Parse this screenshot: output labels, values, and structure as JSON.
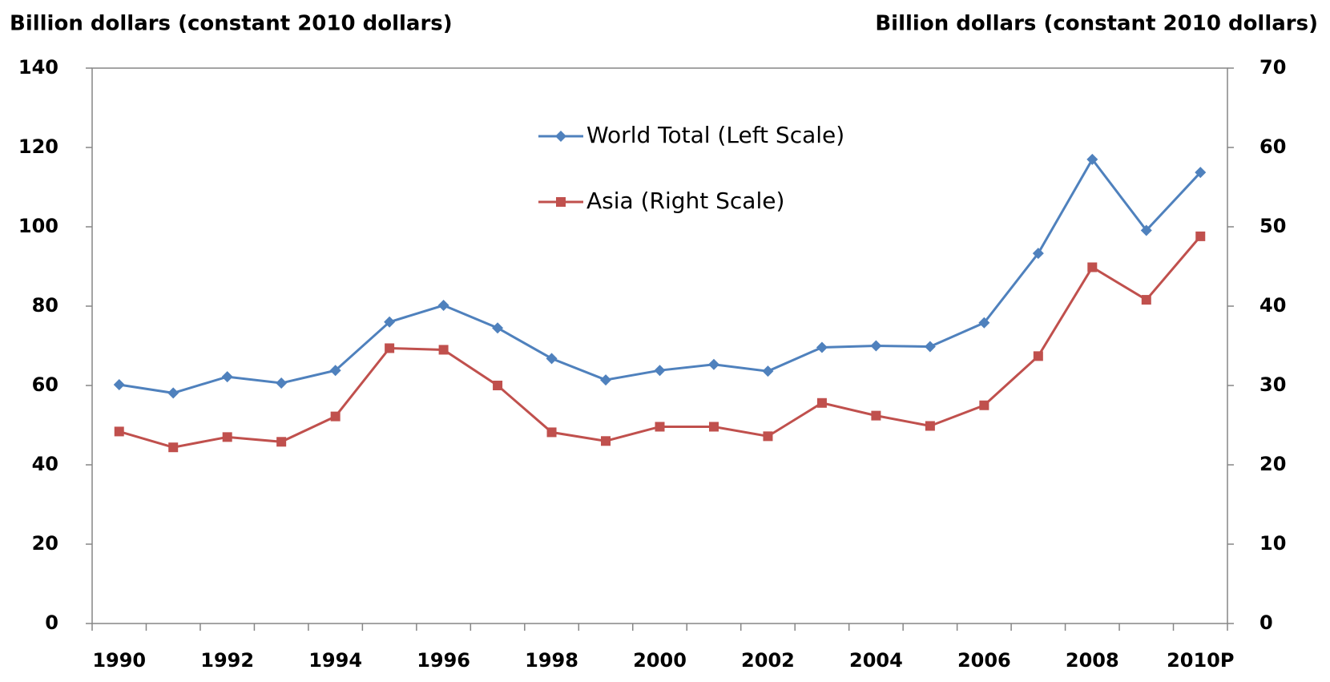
{
  "chart_data": {
    "type": "line",
    "y_label": "Billion dollars (constant 2010 dollars)",
    "y2_label": "Billion dollars (constant 2010 dollars)",
    "categories": [
      "1990",
      null,
      "1992",
      null,
      "1994",
      null,
      "1996",
      null,
      "1998",
      null,
      "2000",
      null,
      "2002",
      null,
      "2004",
      null,
      "2006",
      null,
      "2008",
      null,
      "2010P"
    ],
    "series": [
      {
        "name": "World Total (Left Scale)",
        "color": "#4f81bd",
        "marker": "diamond",
        "axis": "y",
        "values": [
          60.2,
          58.1,
          62.2,
          60.6,
          63.8,
          76,
          80.2,
          74.5,
          66.8,
          61.4,
          63.8,
          65.3,
          63.6,
          69.6,
          70,
          69.8,
          75.8,
          93.3,
          117,
          99.1,
          113.7
        ]
      },
      {
        "name": "Asia (Right Scale)",
        "color": "#c0504d",
        "marker": "square",
        "axis": "y2",
        "values": [
          24.2,
          22.2,
          23.5,
          22.9,
          26.1,
          34.7,
          34.5,
          30,
          24.1,
          23,
          24.8,
          24.8,
          23.6,
          27.8,
          26.2,
          24.9,
          27.5,
          33.7,
          44.9,
          40.8,
          48.8
        ]
      }
    ],
    "ylim": [
      0,
      140
    ],
    "yticks": [
      0,
      20,
      40,
      60,
      80,
      100,
      120,
      140
    ],
    "y2lim": [
      0,
      70
    ],
    "y2ticks": [
      0,
      10,
      20,
      30,
      40,
      50,
      60,
      70
    ],
    "grid": false,
    "legend": "top"
  }
}
